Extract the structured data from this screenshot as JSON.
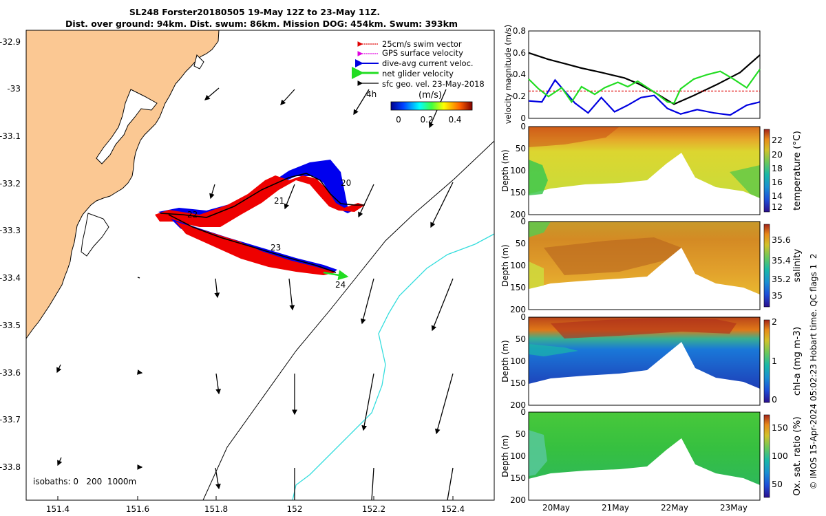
{
  "title": {
    "line1": "SL248 Forster20180505 19-May 12Z to 23-May 11Z.",
    "line2": "Dist. over ground: 94km. Dist. swum: 86km. Mission DOG: 454km. Swum: 393km"
  },
  "map": {
    "lon_ticks": [
      "151.4",
      "151.6",
      "151.8",
      "152",
      "152.2",
      "152.4"
    ],
    "lat_ticks": [
      "-32.9",
      "-33",
      "-33.1",
      "-33.2",
      "-33.3",
      "-33.4",
      "-33.5",
      "-33.6",
      "-33.7",
      "-33.8"
    ],
    "legend": [
      {
        "label": "25cm/s swim vector",
        "color": "#e00000"
      },
      {
        "label": "GPS surface velocity",
        "color": "#e000e0"
      },
      {
        "label": "dive-avg current veloc.",
        "color": "#0000e0"
      },
      {
        "label": "net glider velocity",
        "color": "#00e000"
      },
      {
        "label": "sfc geo. vel. 23-May-2018",
        "color": "#000000"
      }
    ],
    "colorbar_unit": "(m/s)",
    "colorbar_ticks": [
      "0",
      "0.2",
      "0.4"
    ],
    "scale_label": "4h",
    "day_labels": [
      "20",
      "21",
      "22",
      "23",
      "24"
    ],
    "isobaths_label": "isobaths: 0   200  1000m"
  },
  "chart_data": [
    {
      "type": "line",
      "title": "velocity magnitude",
      "ylabel": "velocity magnitude (m/s)",
      "ylim": [
        0,
        0.8
      ],
      "y_ticks": [
        "0",
        "0.2",
        "0.4",
        "0.6",
        "0.8"
      ],
      "series": [
        {
          "name": "sfc geo. vel.",
          "color": "#000000",
          "x": [
            0,
            0.3,
            0.55,
            0.8,
            1.1,
            1.45,
            1.65,
            1.9,
            2.2,
            2.5,
            2.85,
            3.2,
            3.5
          ],
          "y": [
            0.6,
            0.54,
            0.5,
            0.46,
            0.42,
            0.37,
            0.32,
            0.24,
            0.13,
            0.21,
            0.31,
            0.42,
            0.58
          ]
        },
        {
          "name": "25cm/s swim vector",
          "color": "#e00000",
          "x": [
            0,
            3.5
          ],
          "y": [
            0.25,
            0.25
          ]
        },
        {
          "name": "dive-avg current",
          "color": "#0000e0",
          "x": [
            0,
            0.2,
            0.4,
            0.7,
            0.9,
            1.1,
            1.3,
            1.5,
            1.7,
            1.9,
            2.1,
            2.3,
            2.55,
            2.8,
            3.05,
            3.3,
            3.5
          ],
          "y": [
            0.16,
            0.15,
            0.35,
            0.14,
            0.05,
            0.19,
            0.06,
            0.12,
            0.19,
            0.21,
            0.09,
            0.04,
            0.08,
            0.05,
            0.03,
            0.12,
            0.15
          ]
        },
        {
          "name": "net glider velocity",
          "color": "#22dd22",
          "x": [
            0,
            0.15,
            0.3,
            0.5,
            0.65,
            0.8,
            1.0,
            1.15,
            1.35,
            1.5,
            1.65,
            1.8,
            1.95,
            2.1,
            2.2,
            2.3,
            2.5,
            2.7,
            2.9,
            3.1,
            3.3,
            3.5
          ],
          "y": [
            0.36,
            0.27,
            0.2,
            0.28,
            0.15,
            0.29,
            0.22,
            0.28,
            0.33,
            0.29,
            0.34,
            0.28,
            0.22,
            0.15,
            0.14,
            0.27,
            0.36,
            0.4,
            0.43,
            0.36,
            0.28,
            0.45
          ]
        }
      ]
    },
    {
      "type": "heatmap",
      "title": "temperature",
      "ylabel": "Depth (m)",
      "colorbar_label": "temperature (°C)",
      "ylim": [
        200,
        0
      ],
      "y_ticks": [
        "0",
        "50",
        "100",
        "150",
        "200"
      ],
      "colorbar_ticks": [
        "22",
        "20",
        "18",
        "16",
        "14",
        "12"
      ],
      "clim": [
        11.5,
        23.5
      ],
      "colormap": "parula"
    },
    {
      "type": "heatmap",
      "title": "salinity",
      "ylabel": "Depth (m)",
      "colorbar_label": "salinity",
      "ylim": [
        200,
        0
      ],
      "y_ticks": [
        "0",
        "50",
        "100",
        "150",
        "200"
      ],
      "colorbar_ticks": [
        "35.6",
        "35.4",
        "35.2",
        "35"
      ],
      "clim": [
        34.9,
        35.8
      ],
      "colormap": "parula"
    },
    {
      "type": "heatmap",
      "title": "chl-a",
      "ylabel": "Depth (m)",
      "colorbar_label": "chl-a (mg m-3)",
      "ylim": [
        200,
        0
      ],
      "y_ticks": [
        "0",
        "50",
        "100",
        "150",
        "200"
      ],
      "colorbar_ticks": [
        "2",
        "1",
        "0"
      ],
      "clim": [
        0,
        2
      ],
      "colormap": "parula"
    },
    {
      "type": "heatmap",
      "title": "oxygen saturation",
      "ylabel": "Depth (m)",
      "colorbar_label": "Ox. sat. ratio (%)",
      "ylim": [
        200,
        0
      ],
      "y_ticks": [
        "0",
        "50",
        "100",
        "150",
        "200"
      ],
      "colorbar_ticks": [
        "150",
        "100",
        "50"
      ],
      "clim": [
        20,
        170
      ],
      "colormap": "parula"
    }
  ],
  "time_axis": {
    "ticks": [
      "20May",
      "21May",
      "22May",
      "23May"
    ]
  },
  "side_note": "© IMOS 15-Apr-2024 05:02:23 Hobart time. QC flags 1  2"
}
